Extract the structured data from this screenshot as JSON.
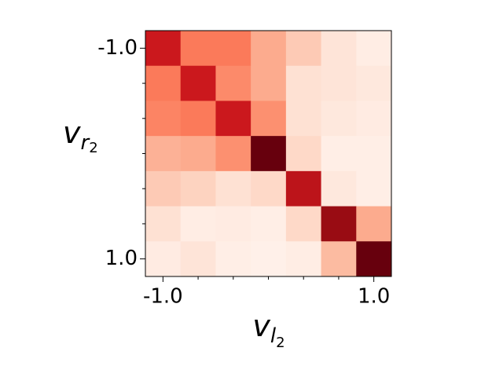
{
  "chart_data": {
    "type": "heatmap",
    "colormap": "Reds",
    "vmin": 0,
    "vmax": 1,
    "z": [
      [
        0.75,
        0.45,
        0.45,
        0.3,
        0.2,
        0.1,
        0.05
      ],
      [
        0.45,
        0.75,
        0.4,
        0.3,
        0.12,
        0.1,
        0.08
      ],
      [
        0.42,
        0.45,
        0.75,
        0.38,
        0.12,
        0.08,
        0.06
      ],
      [
        0.28,
        0.3,
        0.38,
        1.0,
        0.15,
        0.04,
        0.04
      ],
      [
        0.2,
        0.17,
        0.12,
        0.15,
        0.8,
        0.08,
        0.04
      ],
      [
        0.12,
        0.05,
        0.06,
        0.04,
        0.15,
        0.9,
        0.3
      ],
      [
        0.06,
        0.1,
        0.04,
        0.03,
        0.05,
        0.25,
        1.0
      ]
    ],
    "xlim": [
      -1.1667,
      1.1667
    ],
    "ylim": [
      -1.1667,
      1.1667
    ],
    "y_inverted": true,
    "xticks": [
      {
        "value": -1,
        "label": "-1.0"
      },
      {
        "value": 1,
        "label": "1.0"
      }
    ],
    "yticks": [
      {
        "value": -1,
        "label": "-1.0"
      },
      {
        "value": 1,
        "label": "1.0"
      }
    ],
    "xminorticks": [
      -0.6667,
      -0.3333,
      0,
      0.3333,
      0.6667
    ],
    "yminorticks": [
      -0.6667,
      -0.3333,
      0,
      0.3333,
      0.6667
    ],
    "xlabel": {
      "base": "v",
      "sub": "l",
      "subsub": "2"
    },
    "ylabel": {
      "base": "v",
      "sub": "r",
      "subsub": "2"
    }
  }
}
